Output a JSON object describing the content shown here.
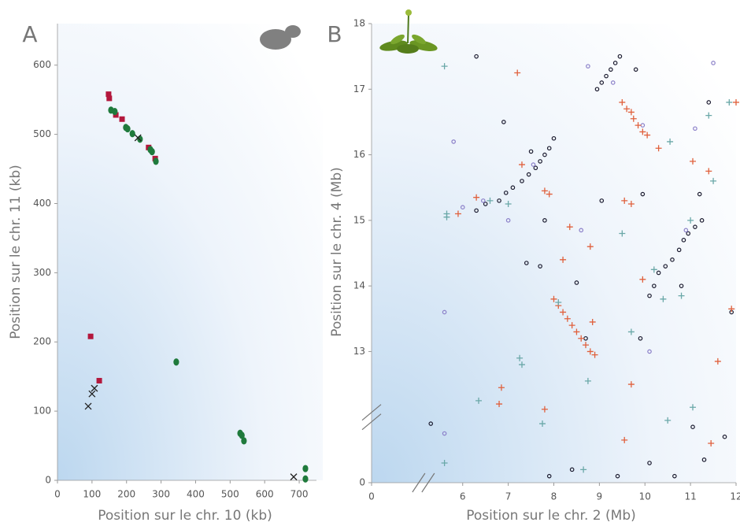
{
  "chart_data": [
    {
      "type": "scatter",
      "title": "A",
      "x_label": "Position sur le chr. 10 (kb)",
      "y_label": "Position sur le chr. 11 (kb)",
      "xlim": [
        0,
        750
      ],
      "ylim": [
        0,
        660
      ],
      "xticks": [
        0,
        100,
        200,
        300,
        400,
        500,
        600,
        700
      ],
      "yticks": [
        0,
        100,
        200,
        300,
        400,
        500,
        600
      ],
      "series": [
        {
          "color": "#b3173c",
          "marker": "square",
          "x": [
            148,
            150,
            169,
            187,
            264,
            283,
            96,
            121
          ],
          "y": [
            558,
            552,
            528,
            522,
            481,
            465,
            208,
            144
          ]
        },
        {
          "color": "#1f7a3c",
          "marker": "dot",
          "x": [
            155,
            166,
            198,
            203,
            217,
            239,
            269,
            274,
            285,
            344,
            529,
            534,
            540,
            718,
            718
          ],
          "y": [
            535,
            533,
            510,
            508,
            501,
            493,
            478,
            475,
            461,
            171,
            68,
            65,
            57,
            17,
            2
          ]
        },
        {
          "color": "#222222",
          "marker": "cross",
          "x": [
            233,
            107,
            100,
            89,
            684
          ],
          "y": [
            495,
            133,
            125,
            107,
            5
          ]
        }
      ]
    },
    {
      "type": "scatter",
      "title": "B",
      "x_label": "Position sur le chr. 2 (Mb)",
      "y_label": "Position sur le chr. 4 (Mb)",
      "xlim": [
        0,
        12
      ],
      "ylim": [
        0,
        18
      ],
      "xbreak": [
        1,
        5
      ],
      "ybreak": [
        1,
        12
      ],
      "xticks": [
        0,
        6,
        7,
        8,
        9,
        10,
        11,
        12
      ],
      "yticks": [
        0,
        13,
        14,
        15,
        16,
        17,
        18
      ],
      "series": [
        {
          "color": "#1a1a2e",
          "marker": "ring",
          "x": [
            6.3,
            6.5,
            6.8,
            6.95,
            7.1,
            7.3,
            7.45,
            7.6,
            7.7,
            7.8,
            7.9,
            8.0,
            8.95,
            9.05,
            9.15,
            9.25,
            9.35,
            9.45,
            10.1,
            10.2,
            10.3,
            10.45,
            10.6,
            10.75,
            10.85,
            10.95,
            11.1,
            11.25,
            6.3,
            6.9,
            7.5,
            7.8,
            7.4,
            7.7,
            8.5,
            8.7,
            9.05,
            9.8,
            9.95,
            9.9,
            10.8,
            11.2,
            11.4,
            11.9,
            5.3,
            7.9,
            8.4,
            9.4,
            10.1,
            10.65,
            11.05,
            11.3,
            11.75
          ],
          "y": [
            15.15,
            15.25,
            15.3,
            15.42,
            15.5,
            15.6,
            15.7,
            15.8,
            15.9,
            16.0,
            16.1,
            16.25,
            17.0,
            17.1,
            17.2,
            17.3,
            17.4,
            17.5,
            13.85,
            14.0,
            14.2,
            14.3,
            14.4,
            14.55,
            14.7,
            14.8,
            14.9,
            15.0,
            17.5,
            16.5,
            16.05,
            15.0,
            14.35,
            14.3,
            14.05,
            13.2,
            15.3,
            17.3,
            15.4,
            13.2,
            14.0,
            15.4,
            16.8,
            13.6,
            0.9,
            0.1,
            0.2,
            0.1,
            0.3,
            0.1,
            0.85,
            0.35,
            0.7
          ]
        },
        {
          "color": "#8a7fc8",
          "marker": "ring",
          "x": [
            5.6,
            5.8,
            6.0,
            7.0,
            7.55,
            8.6,
            8.75,
            9.3,
            9.95,
            10.1,
            11.1,
            11.5,
            5.6,
            6.45,
            10.9
          ],
          "y": [
            0.75,
            16.2,
            15.2,
            15.0,
            15.85,
            14.85,
            17.35,
            17.1,
            16.45,
            13.0,
            16.4,
            17.4,
            13.6,
            15.3,
            14.85
          ]
        },
        {
          "color": "#e0603c",
          "marker": "plus",
          "x": [
            9.5,
            9.6,
            9.7,
            9.75,
            9.85,
            9.95,
            10.05,
            8.0,
            8.1,
            8.2,
            8.3,
            8.4,
            8.5,
            8.6,
            8.7,
            8.8,
            8.9,
            5.9,
            6.3,
            7.2,
            7.3,
            7.8,
            7.9,
            8.2,
            8.35,
            8.8,
            8.85,
            9.55,
            9.7,
            9.7,
            9.95,
            10.3,
            11.05,
            11.4,
            11.6,
            11.45,
            11.9,
            12.0,
            6.85,
            6.8,
            7.8,
            9.55
          ],
          "y": [
            16.8,
            16.7,
            16.65,
            16.55,
            16.45,
            16.35,
            16.3,
            13.8,
            13.7,
            13.6,
            13.5,
            13.4,
            13.3,
            13.2,
            13.1,
            13.0,
            12.95,
            15.1,
            15.35,
            17.25,
            15.85,
            15.45,
            15.4,
            14.4,
            14.9,
            14.6,
            13.45,
            15.3,
            15.25,
            12.5,
            14.1,
            16.1,
            15.9,
            15.75,
            12.85,
            0.6,
            13.65,
            16.8,
            12.45,
            12.2,
            12.12,
            0.65
          ]
        },
        {
          "color": "#6aa8a8",
          "marker": "plus",
          "x": [
            5.6,
            5.65,
            5.65,
            6.6,
            7.0,
            7.25,
            7.3,
            8.1,
            8.75,
            9.5,
            9.7,
            10.55,
            10.2,
            10.4,
            10.8,
            11.0,
            11.4,
            11.5,
            11.85,
            5.6,
            6.35,
            7.75,
            8.65,
            10.5,
            11.05
          ],
          "y": [
            17.35,
            15.1,
            15.05,
            15.3,
            15.25,
            12.9,
            12.8,
            13.75,
            12.55,
            14.8,
            13.3,
            16.2,
            14.25,
            13.8,
            13.85,
            15.0,
            16.6,
            15.6,
            16.8,
            0.3,
            12.25,
            0.9,
            0.2,
            0.95,
            12.15
          ]
        }
      ]
    }
  ]
}
